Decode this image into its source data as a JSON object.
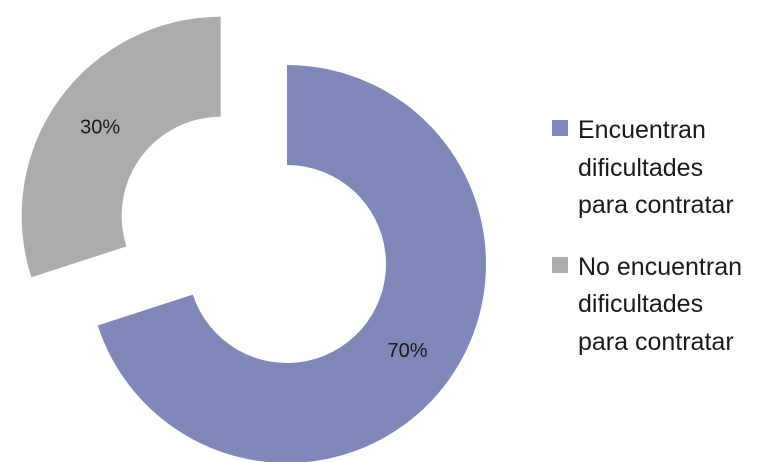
{
  "chart_data": {
    "type": "pie",
    "variant": "exploded-doughnut",
    "title": "",
    "slices": [
      {
        "name": "Encuentran dificultades para contratar",
        "value": 70,
        "label": "70%",
        "color": "#7f88b7"
      },
      {
        "name": "No encuentran dificultades para contratar",
        "value": 30,
        "label": "30%",
        "color": "#aeabab"
      }
    ],
    "legend_position": "right"
  },
  "legend": [
    {
      "lines": [
        "Encuentran",
        "dificultades",
        "para contratar"
      ],
      "color": "#7f88b7"
    },
    {
      "lines": [
        "No encuentran",
        "dificultades",
        "para contratar"
      ],
      "color": "#aeabab"
    }
  ]
}
